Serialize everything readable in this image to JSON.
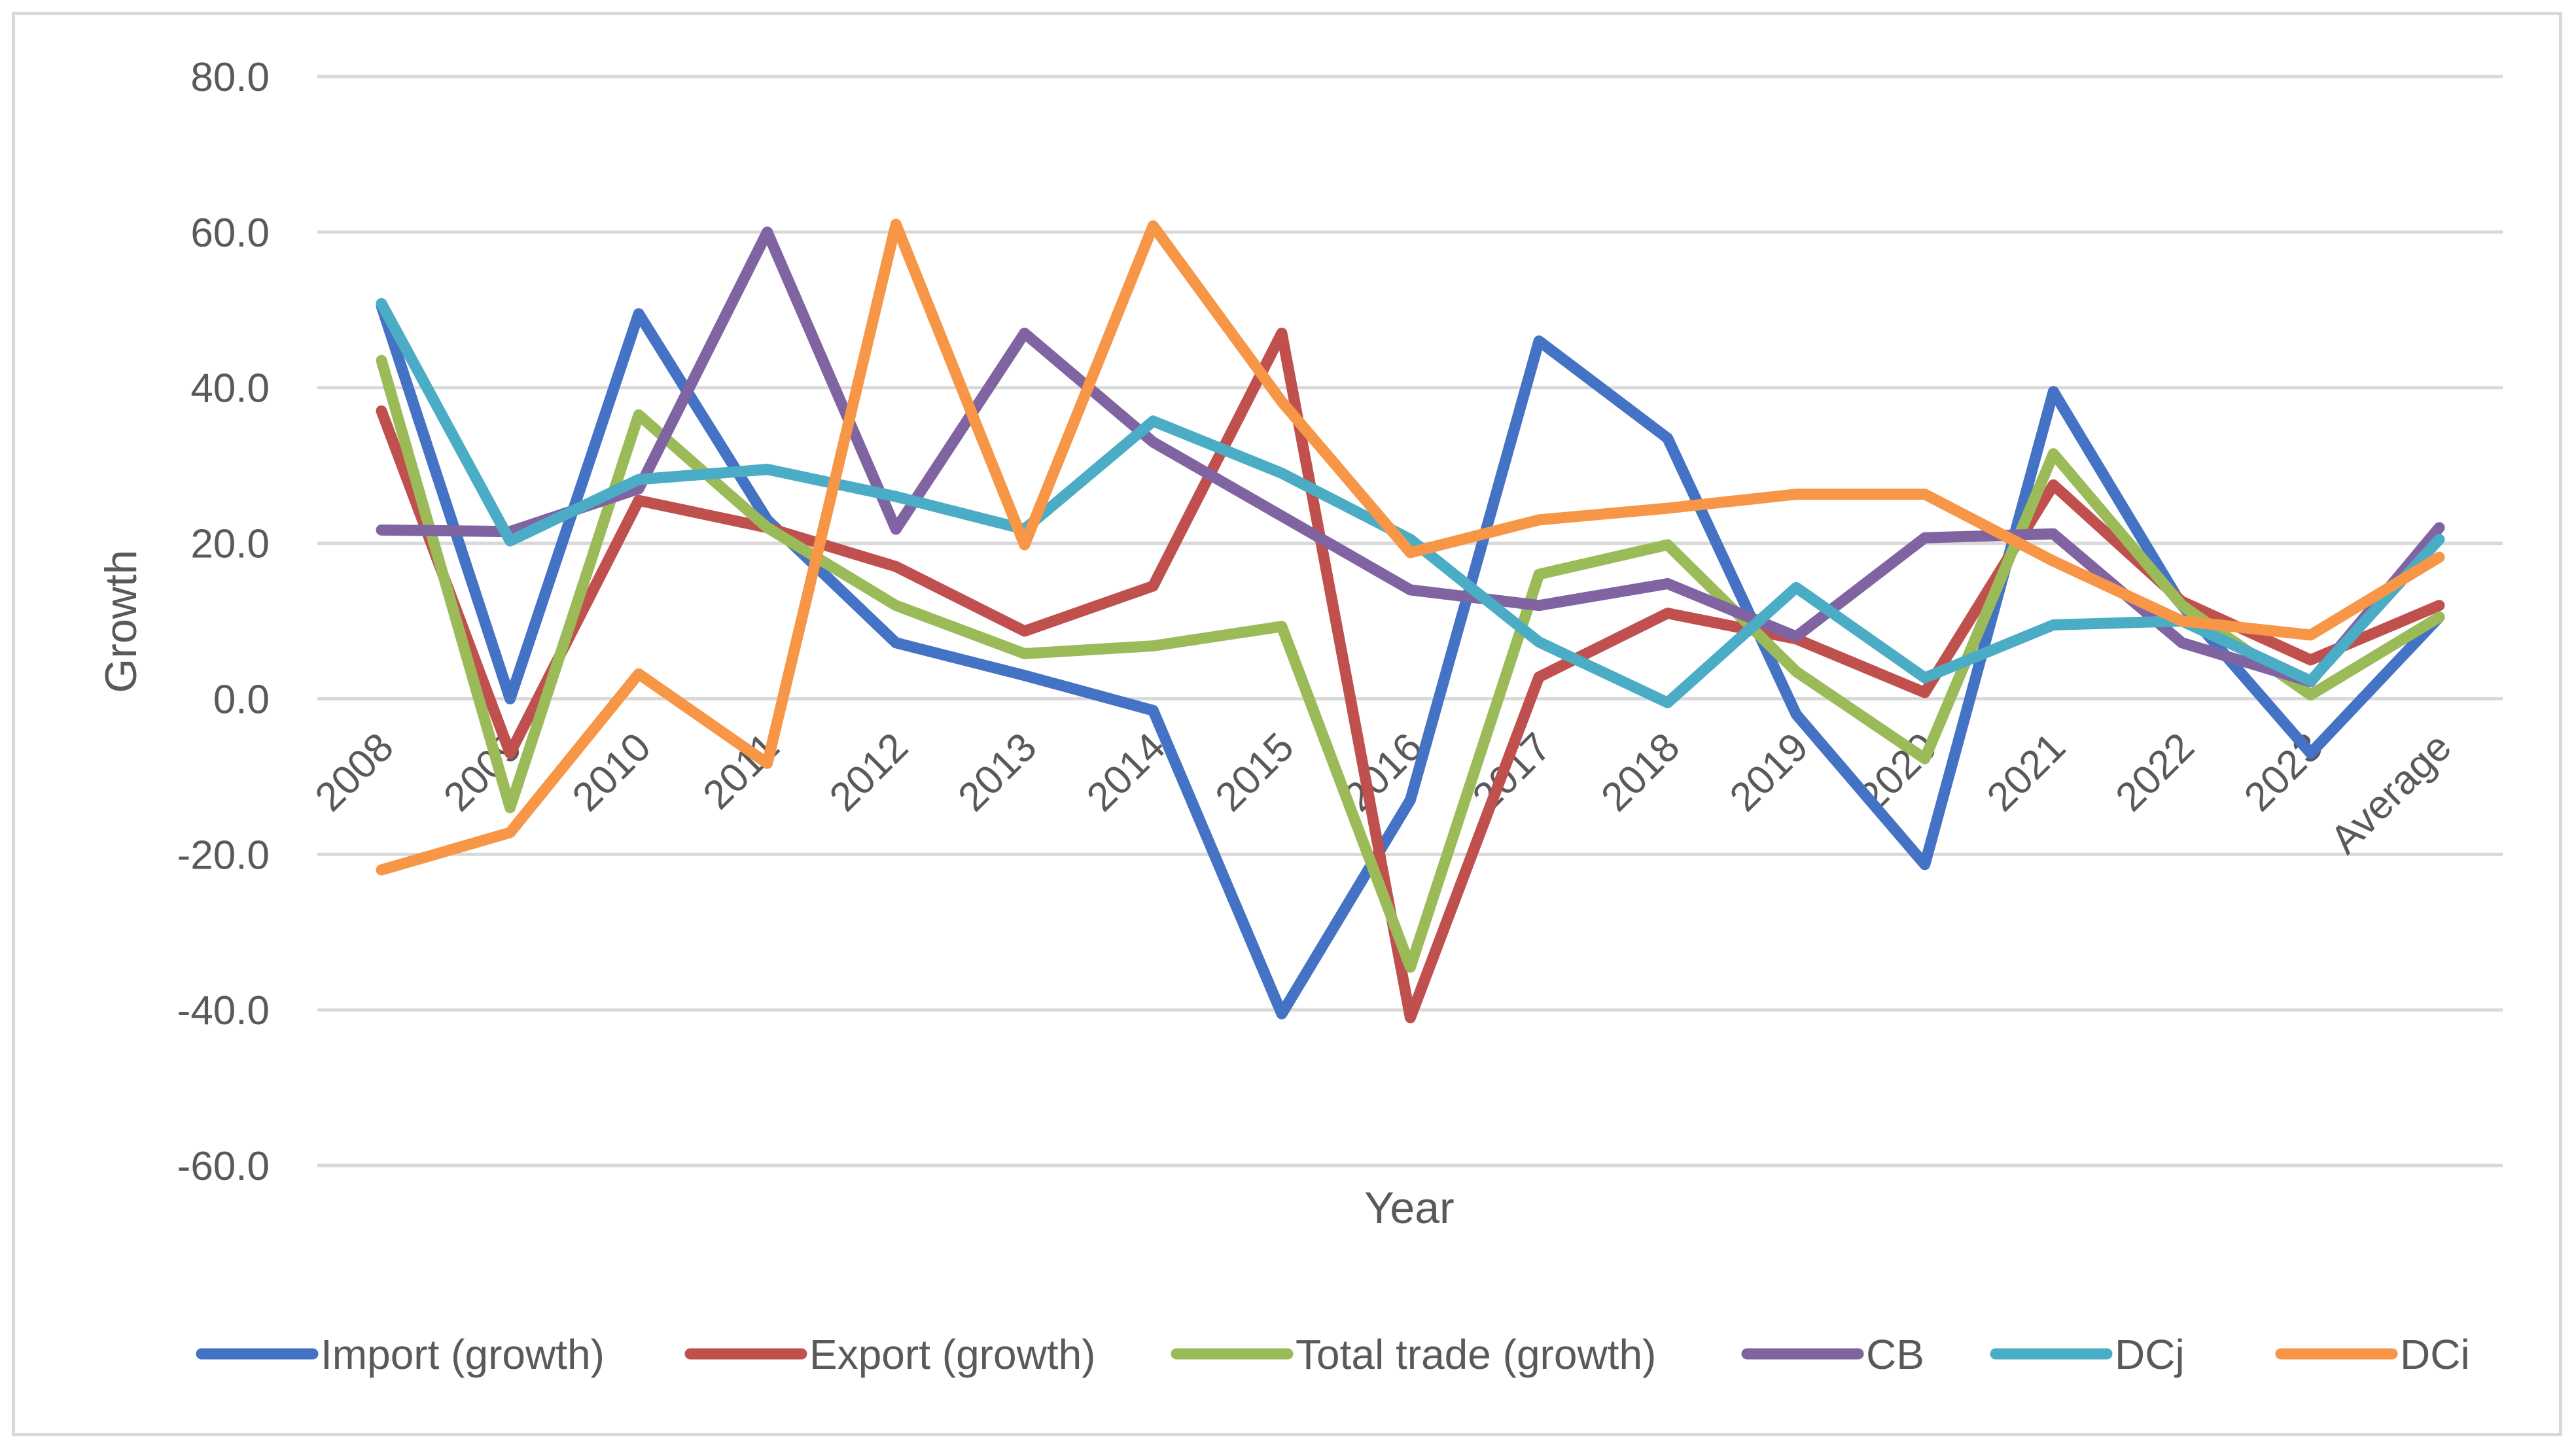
{
  "chart_data": {
    "type": "line",
    "title": "",
    "xlabel": "Year",
    "ylabel": "Growth",
    "ylim": [
      -60,
      80
    ],
    "yticks": [
      "-60.0",
      "-40.0",
      "-20.0",
      "0.0",
      "20.0",
      "40.0",
      "60.0",
      "80.0"
    ],
    "ytick_values": [
      -60,
      -40,
      -20,
      0,
      20,
      40,
      60,
      80
    ],
    "grid": true,
    "legend_position": "bottom",
    "categories": [
      "2008",
      "2009",
      "2010",
      "2011",
      "2012",
      "2013",
      "2014",
      "2015",
      "2016",
      "2017",
      "2018",
      "2019",
      "2020",
      "2021",
      "2022",
      "2023",
      "Average"
    ],
    "series": [
      {
        "name": "Import (growth)",
        "color": "#4472c4",
        "values": [
          50.5,
          0.0,
          49.5,
          23.0,
          7.2,
          3.0,
          -1.5,
          -40.5,
          -13.0,
          46.0,
          33.5,
          -2.0,
          -21.3,
          39.5,
          12.0,
          -7.0,
          10.5
        ]
      },
      {
        "name": "Export (growth)",
        "color": "#c0504d",
        "values": [
          37.0,
          -7.0,
          25.5,
          22.0,
          17.0,
          8.7,
          14.5,
          47.0,
          -41.0,
          2.8,
          11.0,
          7.7,
          0.8,
          27.5,
          12.5,
          5.0,
          12.0
        ]
      },
      {
        "name": "Total trade (growth)",
        "color": "#9bbb59",
        "values": [
          43.5,
          -14.0,
          36.5,
          22.0,
          12.0,
          5.8,
          6.8,
          9.3,
          -34.5,
          16.0,
          19.8,
          3.5,
          -7.7,
          31.5,
          12.0,
          0.5,
          10.5
        ]
      },
      {
        "name": "CB",
        "color": "#8064a2",
        "values": [
          21.7,
          21.5,
          27.0,
          60.0,
          21.8,
          47.0,
          33.0,
          23.5,
          14.0,
          12.0,
          14.8,
          8.0,
          20.7,
          21.2,
          7.2,
          2.2,
          22.0
        ]
      },
      {
        "name": "DCj",
        "color": "#4bacc6",
        "values": [
          50.8,
          20.3,
          28.2,
          29.5,
          26.0,
          21.8,
          35.7,
          29.0,
          20.5,
          7.3,
          -0.5,
          14.3,
          2.7,
          9.5,
          10.0,
          2.3,
          20.5
        ]
      },
      {
        "name": "DCi",
        "color": "#f79646",
        "values": [
          -22.0,
          -17.2,
          3.2,
          -8.3,
          61.0,
          19.8,
          60.8,
          38.2,
          18.8,
          23.0,
          24.5,
          26.3,
          26.3,
          17.7,
          10.0,
          8.2,
          18.2
        ]
      }
    ]
  }
}
